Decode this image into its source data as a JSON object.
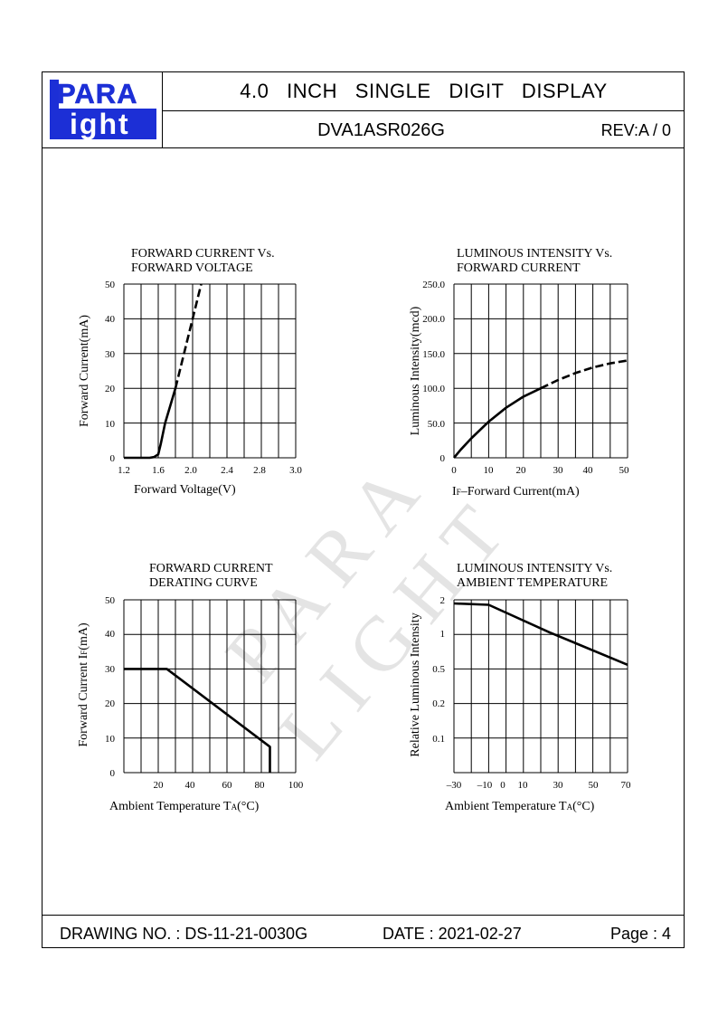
{
  "header": {
    "logo_top": "PARA",
    "logo_bottom": "ight",
    "logo_l": "L",
    "title": "4.0   INCH   SINGLE   DIGIT   DISPLAY",
    "part_number": "DVA1ASR026G",
    "revision": "REV:A / 0"
  },
  "footer": {
    "drawing_no": "DRAWING NO. : DS-11-21-0030G",
    "date": "DATE : 2021-02-27",
    "page": "Page : 4"
  },
  "watermark": "PARA LIGHT",
  "chart_data": [
    {
      "type": "line",
      "title": "FORWARD  CURRENT  Vs.",
      "subtitle": "FORWARD  VOLTAGE",
      "xlabel": "Forward  Voltage(V)",
      "ylabel": "Forward  Current(mA)",
      "x_ticks": [
        "1.2",
        "1.6",
        "2.0",
        "2.4",
        "2.8",
        "3.0"
      ],
      "y_ticks": [
        "0",
        "10",
        "20",
        "30",
        "40",
        "50"
      ],
      "xlim": [
        1.2,
        3.2
      ],
      "ylim": [
        0,
        50
      ],
      "series": [
        {
          "style": "solid",
          "x": [
            1.2,
            1.5,
            1.55,
            1.6,
            1.63,
            1.68,
            1.8
          ],
          "y": [
            0,
            0,
            0.2,
            1,
            4,
            10,
            20
          ]
        },
        {
          "style": "dashed",
          "x": [
            1.8,
            1.9,
            2.0,
            2.1
          ],
          "y": [
            20,
            30,
            40,
            50
          ]
        }
      ]
    },
    {
      "type": "line",
      "title": "LUMINOUS  INTENSITY  Vs.",
      "subtitle": "FORWARD  CURRENT",
      "xlabel_prefix": "I",
      "xlabel_sub": "F",
      "xlabel": "–Forward  Current(mA)",
      "ylabel": "Luminous  Intensity(mcd)",
      "x_ticks": [
        "0",
        "10",
        "20",
        "30",
        "40",
        "50"
      ],
      "y_ticks": [
        "0",
        "50.0",
        "100.0",
        "150.0",
        "200.0",
        "250.0"
      ],
      "xlim": [
        0,
        50
      ],
      "ylim": [
        0,
        250
      ],
      "series": [
        {
          "style": "solid",
          "x": [
            0,
            2,
            5,
            10,
            15,
            20,
            25
          ],
          "y": [
            0,
            12,
            28,
            52,
            72,
            88,
            100
          ]
        },
        {
          "style": "dashed",
          "x": [
            25,
            30,
            35,
            40,
            45,
            50
          ],
          "y": [
            100,
            112,
            122,
            130,
            136,
            140
          ]
        }
      ]
    },
    {
      "type": "line",
      "title": "FORWARD  CURRENT",
      "subtitle": "DERATING  CURVE",
      "xlabel": "Ambient  Temperature  T",
      "xlabel_sub": "A",
      "xlabel_unit": "(°C)",
      "ylabel": "Forward  Current  I",
      "ylabel_sub": "F",
      "ylabel_unit": "(mA)",
      "x_ticks": [
        "20",
        "40",
        "60",
        "80",
        "100"
      ],
      "y_ticks": [
        "0",
        "10",
        "20",
        "30",
        "40",
        "50"
      ],
      "xlim": [
        0,
        100
      ],
      "ylim": [
        0,
        50
      ],
      "series": [
        {
          "style": "solid",
          "x": [
            0,
            25,
            85,
            85
          ],
          "y": [
            30,
            30,
            7.5,
            0
          ]
        }
      ]
    },
    {
      "type": "line",
      "title": "LUMINOUS  INTENSITY  Vs.",
      "subtitle": "AMBIENT  TEMPERATURE",
      "xlabel": "Ambient  Temperature  T",
      "xlabel_sub": "A",
      "xlabel_unit": "(°C)",
      "ylabel": "Relative  Luminous  Intensity",
      "x_ticks": [
        "–30",
        "–10",
        "0",
        "10",
        "30",
        "50",
        "70"
      ],
      "y_ticks": [
        "0.1",
        "0.2",
        "0.5",
        "1",
        "2"
      ],
      "xlim": [
        -30,
        70
      ],
      "ylim": [
        0.05,
        2
      ],
      "y_scale": "log",
      "series": [
        {
          "style": "solid",
          "x": [
            -30,
            -10,
            25,
            70
          ],
          "y": [
            1.85,
            1.8,
            1.0,
            0.5
          ]
        }
      ]
    }
  ]
}
